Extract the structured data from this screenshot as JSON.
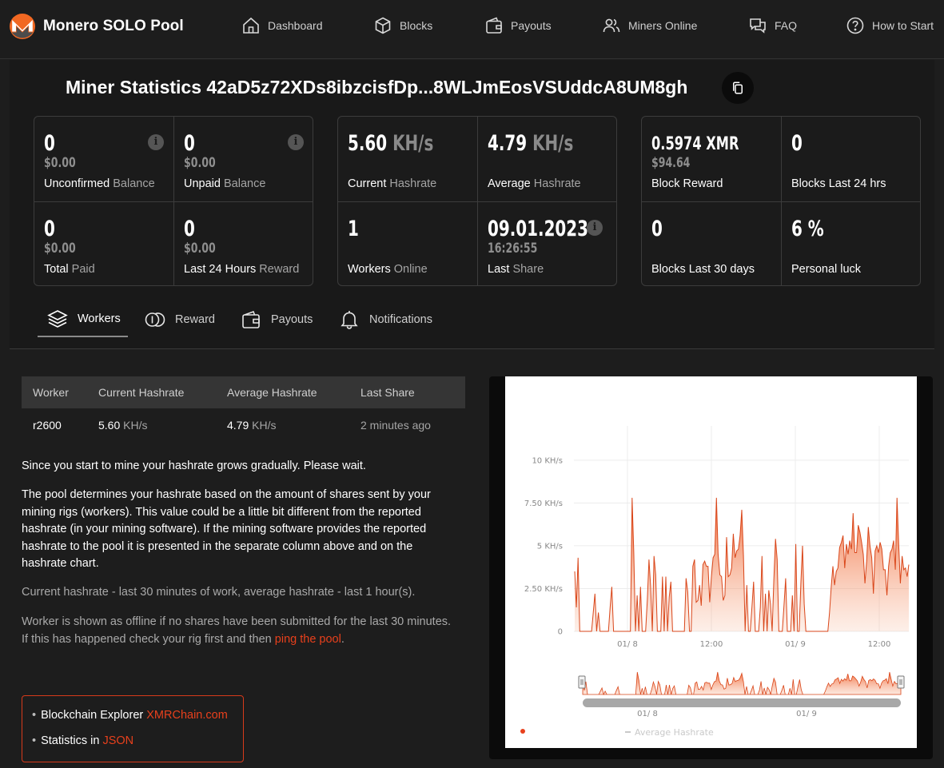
{
  "header": {
    "brand": "Monero SOLO Pool",
    "nav": [
      {
        "label": "Dashboard",
        "icon": "home-icon"
      },
      {
        "label": "Blocks",
        "icon": "cube-icon"
      },
      {
        "label": "Payouts",
        "icon": "wallet-icon"
      },
      {
        "label": "Miners Online",
        "icon": "users-icon"
      },
      {
        "label": "FAQ",
        "icon": "chat-icon"
      },
      {
        "label": "How to Start",
        "icon": "help-icon"
      }
    ]
  },
  "title": "Miner Statistics 42aD5z72XDs8ibzcisfDp...8WLJmEosVSUddcA8UM8gh",
  "balances": {
    "unconfirmed": {
      "value": "0",
      "usd": "$0.00",
      "label_main": "Unconfirmed",
      "label_dim": " Balance"
    },
    "unpaid": {
      "value": "0",
      "usd": "$0.00",
      "label_main": "Unpaid",
      "label_dim": " Balance"
    },
    "total_paid": {
      "value": "0",
      "usd": "$0.00",
      "label_main": "Total",
      "label_dim": " Paid"
    },
    "last24_reward": {
      "value": "0",
      "usd": "$0.00",
      "label_main": "Last 24 Hours",
      "label_dim": " Reward"
    }
  },
  "hashrate": {
    "current": {
      "value": "5.60",
      "unit": " KH/s",
      "label_main": "Current",
      "label_dim": " Hashrate"
    },
    "average": {
      "value": "4.79",
      "unit": " KH/s",
      "label_main": "Average",
      "label_dim": " Hashrate"
    },
    "workers": {
      "value": "1",
      "label_main": "Workers",
      "label_dim": " Online"
    },
    "last_share": {
      "date": "09.01.2023",
      "time": "16:26:55",
      "label_main": "Last",
      "label_dim": " Share"
    }
  },
  "blocks": {
    "reward": {
      "value": "0.5974 XMR",
      "usd": "$94.64",
      "label": "Block Reward"
    },
    "last24": {
      "value": "0",
      "label": "Blocks Last 24 hrs"
    },
    "last30": {
      "value": "0",
      "label": "Blocks Last 30 days"
    },
    "luck": {
      "value": "6 %",
      "label": "Personal luck"
    }
  },
  "tabs": [
    {
      "label": "Workers",
      "icon": "layers-icon",
      "active": true
    },
    {
      "label": "Reward",
      "icon": "coins-icon",
      "active": false
    },
    {
      "label": "Payouts",
      "icon": "wallet-icon",
      "active": false
    },
    {
      "label": "Notifications",
      "icon": "bell-icon",
      "active": false
    }
  ],
  "workers_table": {
    "headers": [
      "Worker",
      "Current Hashrate",
      "Average Hashrate",
      "Last Share"
    ],
    "rows": [
      {
        "worker": "r2600",
        "current": "5.60",
        "current_unit": " KH/s",
        "average": "4.79",
        "average_unit": " KH/s",
        "last_share": "2 minutes ago"
      }
    ]
  },
  "notes": {
    "p1": "Since you start to mine your hashrate grows gradually. Please wait.",
    "p2": "The pool determines your hashrate based on the amount of shares sent by your mining rigs (workers). This value could be a little bit different from the reported hashrate (in your mining software). If the mining software provides the reported hashrate to the pool it is presented in the separate column above and on the hashrate chart.",
    "p3": "Current hashrate - last 30 minutes of work, average hashrate - last 1 hour(s).",
    "p4_text": "Worker is shown as offline if no shares have been submitted for the last 30 minutes. If this has happened check your rig first and then ",
    "p4_link": "ping the pool",
    "p4_end": "."
  },
  "links": [
    {
      "prefix": "Blockchain Explorer ",
      "link": "XMRChain.com"
    },
    {
      "prefix": "Statistics in ",
      "link": "JSON"
    }
  ],
  "colors": {
    "accent": "#e8401c",
    "chart_fill": "#f26a3a",
    "chart_line": "#d9461a"
  },
  "chart_data": {
    "type": "area",
    "yticks": [
      "0",
      "2.50 KH/s",
      "5 KH/s",
      "7.50 KH/s",
      "10 KH/s"
    ],
    "ylim": [
      0,
      12
    ],
    "xticks": [
      "01/ 8",
      "12:00",
      "01/ 9",
      "12:00"
    ],
    "nav_xticks": [
      "01/ 8",
      "01/ 9"
    ],
    "legend": [
      "Average Hashrate"
    ],
    "series": [
      {
        "values": [
          3.5,
          1.4,
          4.3,
          0,
          0,
          0,
          0,
          0,
          0,
          0,
          0,
          1.1,
          2.2,
          0,
          1.1,
          0,
          0,
          0,
          0,
          0,
          0,
          1.4,
          2.6,
          0,
          0,
          0,
          0,
          0,
          0,
          0,
          0,
          0,
          0,
          0,
          7.8,
          4.6,
          0,
          2.1,
          0,
          2.6,
          0,
          0,
          0,
          1.8,
          4.2,
          2.6,
          0,
          4.4,
          3.3,
          0,
          0,
          0,
          3.2,
          0,
          3.2,
          0,
          2,
          2.9,
          0,
          0,
          0,
          0,
          0,
          0,
          0,
          0,
          3.1,
          2.3,
          0,
          0,
          3.8,
          4.2,
          1.7,
          1.8,
          2.7,
          1.5,
          3.9,
          4.1,
          3.8,
          3.8,
          1.7,
          3.2,
          4.3,
          4.5,
          7.8,
          4.5,
          3.3,
          3.2,
          1.8,
          2.1,
          5.5,
          3.2,
          3.3,
          3.7,
          5.7,
          4.3,
          4.7,
          4.8,
          5.6,
          7.1,
          4.4,
          0,
          2.7,
          0,
          0,
          1.4,
          2.9,
          0,
          0,
          0,
          1.4,
          4.4,
          0,
          2.2,
          0,
          2.4,
          1.6,
          0,
          3,
          5.4,
          4.2,
          0,
          0,
          0,
          1.5,
          3.1,
          0,
          0,
          0,
          2.1,
          0,
          5.1,
          0,
          0,
          2.8,
          5,
          1.6,
          0,
          0,
          0,
          0,
          0,
          0,
          0,
          0,
          0,
          0,
          0,
          0,
          0,
          0,
          1.1,
          2.6,
          3.8,
          2.7,
          3.5,
          3.7,
          4.9,
          5.2,
          5.6,
          3.7,
          5.1,
          4.5,
          5.3,
          4.8,
          6.9,
          4.6,
          4.6,
          6.2,
          5.8,
          5.2,
          4.5,
          2.8,
          4.1,
          6.1,
          5,
          4.3,
          2.2,
          4.7,
          5,
          4.6,
          5.2,
          4.8,
          3.6,
          3.6,
          2.1,
          3.8,
          4.6,
          4.8,
          5.3,
          3.6,
          7.8,
          5.1,
          2.8,
          4.4,
          3.6,
          3.7,
          3.2,
          3.9
        ]
      }
    ]
  }
}
